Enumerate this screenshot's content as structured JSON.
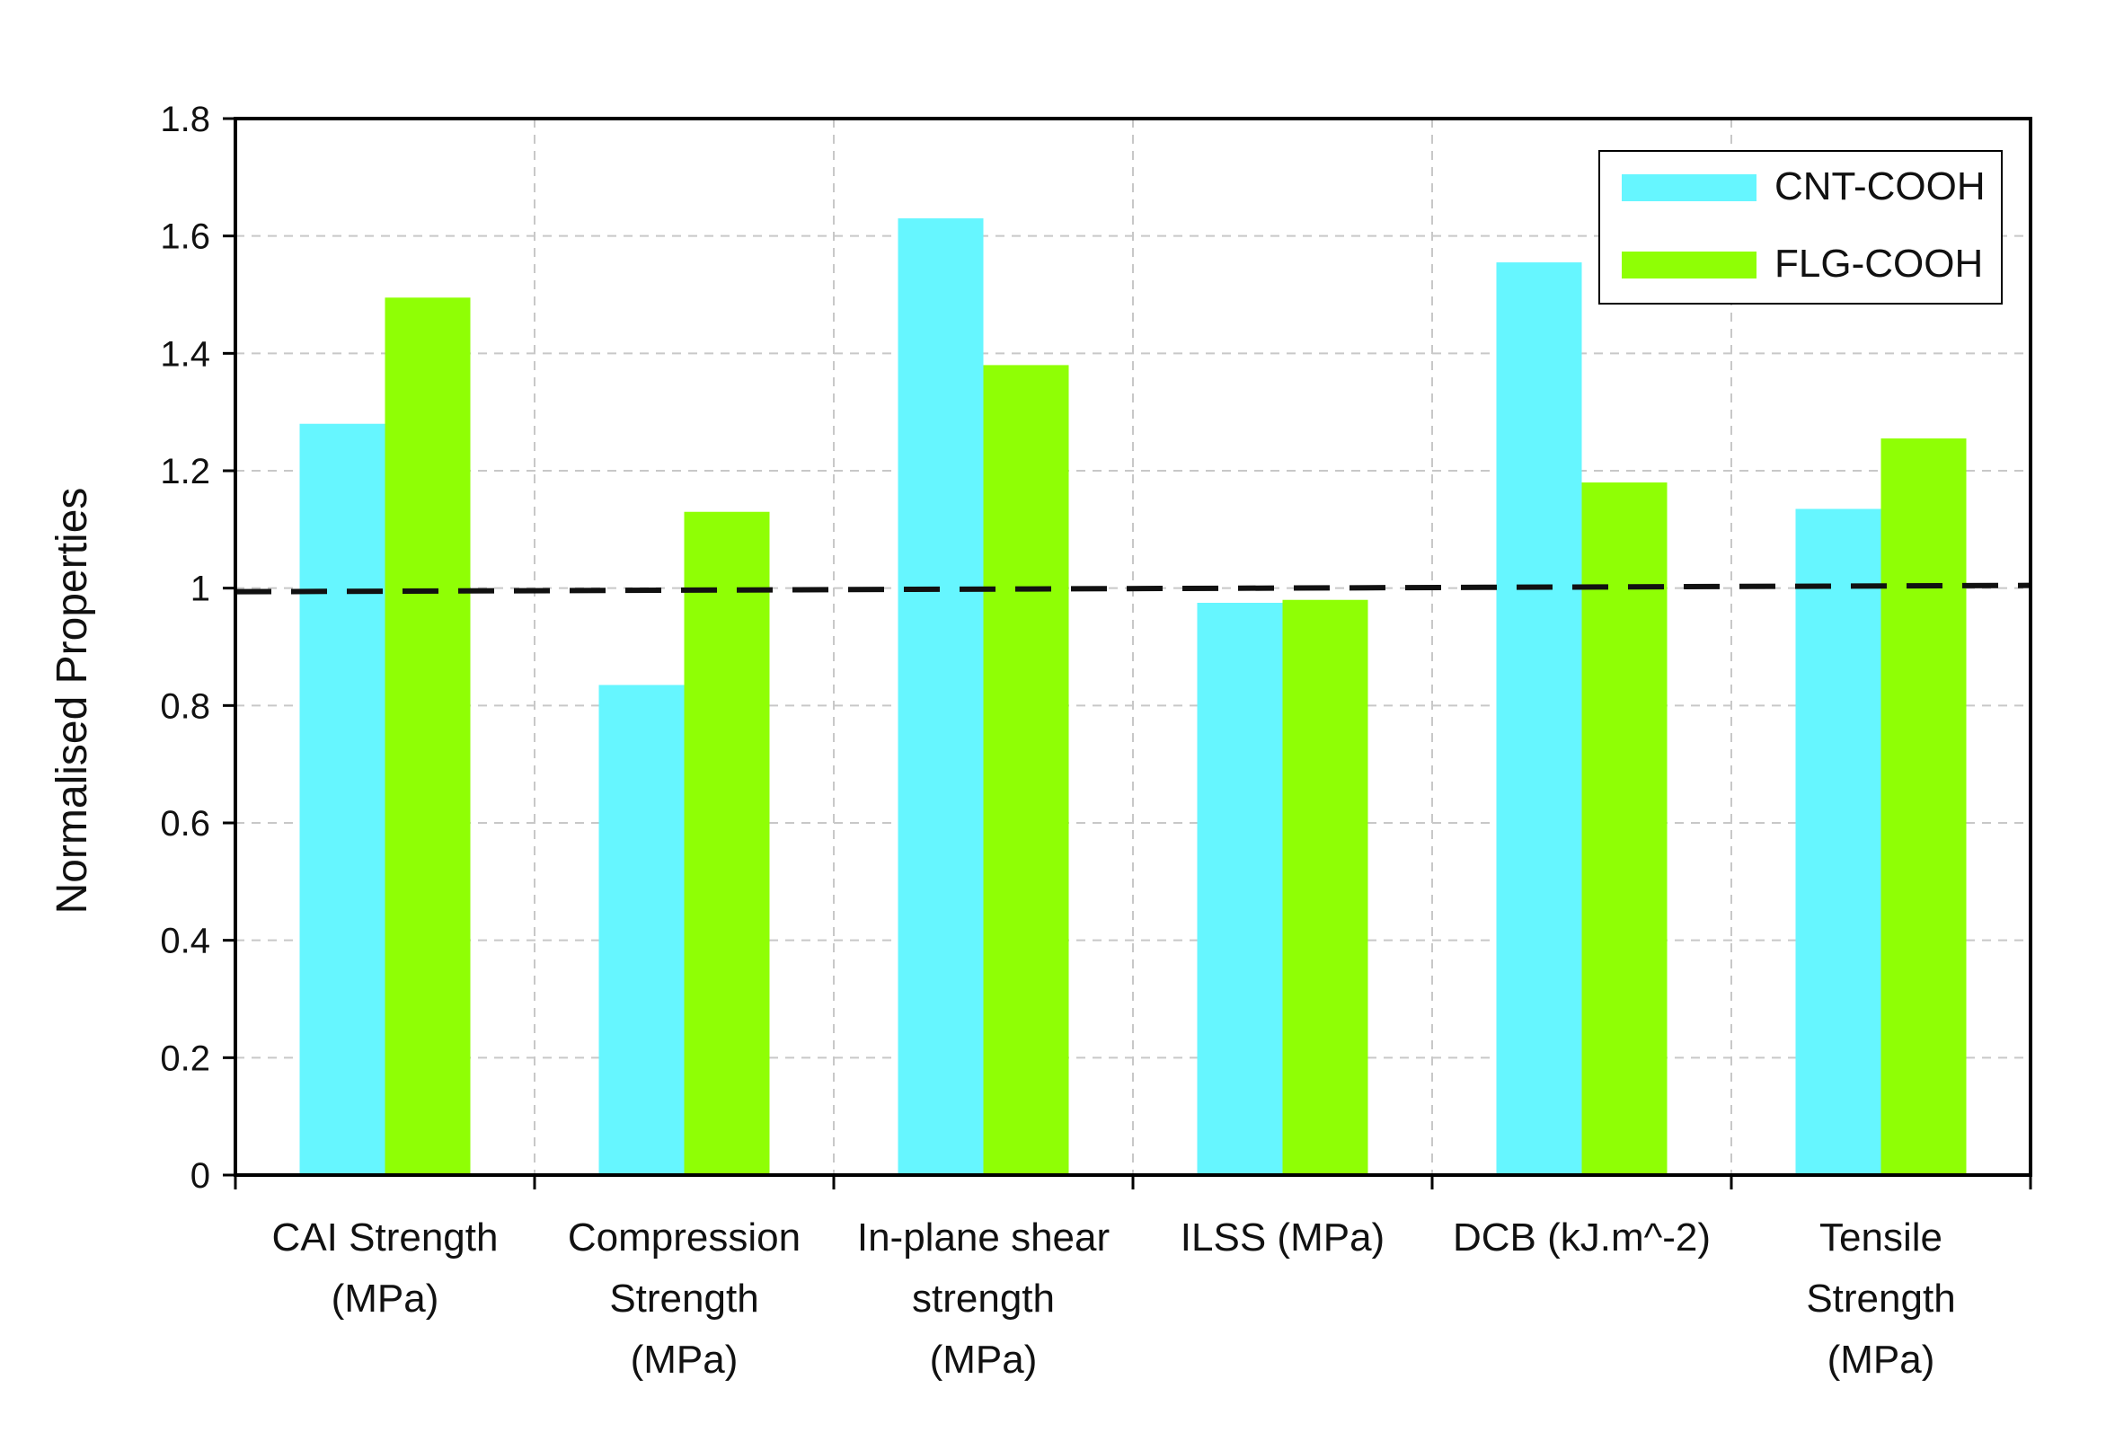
{
  "chart_data": {
    "type": "bar",
    "title": "",
    "xlabel": "",
    "ylabel": "Normalised Properties",
    "ylim": [
      0,
      1.8
    ],
    "yticks": [
      0,
      0.2,
      0.4,
      0.6,
      0.8,
      1,
      1.2,
      1.4,
      1.6,
      1.8
    ],
    "ytick_labels": [
      "0",
      "0.2",
      "0.4",
      "0.6",
      "0.8",
      "1",
      "1.2",
      "1.4",
      "1.6",
      "1.8"
    ],
    "grid": true,
    "legend_position": "top-right",
    "reference_line": {
      "value": 1,
      "style": "dashed"
    },
    "categories": [
      [
        "CAI Strength",
        "(MPa)"
      ],
      [
        "Compression",
        "Strength",
        "(MPa)"
      ],
      [
        "In-plane shear",
        "strength",
        "(MPa)"
      ],
      [
        "ILSS (MPa)"
      ],
      [
        "DCB (kJ.m^-2)"
      ],
      [
        "Tensile",
        "Strength",
        "(MPa)"
      ]
    ],
    "series": [
      {
        "name": "CNT-COOH",
        "color": "#66F6FF",
        "values": [
          1.28,
          0.835,
          1.63,
          0.975,
          1.555,
          1.135
        ]
      },
      {
        "name": "FLG-COOH",
        "color": "#8FFF05",
        "values": [
          1.495,
          1.13,
          1.38,
          0.98,
          1.18,
          1.255
        ]
      }
    ]
  }
}
